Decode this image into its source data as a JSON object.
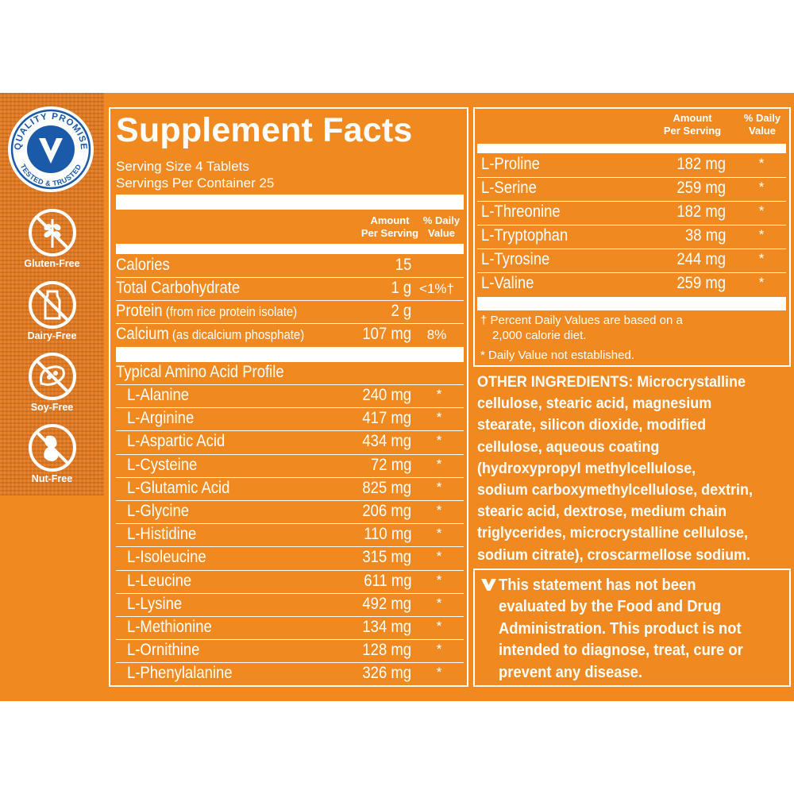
{
  "badge": {
    "top_text": "QUALITY PROMISE",
    "bottom_text": "TESTED & TRUSTED",
    "mark": "V"
  },
  "claims": [
    {
      "icon": "gluten-free-icon",
      "label": "Gluten-Free"
    },
    {
      "icon": "dairy-free-icon",
      "label": "Dairy-Free"
    },
    {
      "icon": "soy-free-icon",
      "label": "Soy-Free"
    },
    {
      "icon": "nut-free-icon",
      "label": "Nut-Free"
    }
  ],
  "facts": {
    "title": "Supplement Facts",
    "serving_size": "Serving Size 4 Tablets",
    "servings_per_container": "Servings Per Container 25",
    "amount_header": [
      "Amount",
      "Per Serving"
    ],
    "dv_header": [
      "% Daily",
      "Value"
    ],
    "nutrients": [
      {
        "name": "Calories",
        "qualifier": "",
        "amount": "15",
        "dv": ""
      },
      {
        "name": "Total Carbohydrate",
        "qualifier": "",
        "amount": "1 g",
        "dv": "<1%†"
      },
      {
        "name": "Protein",
        "qualifier": "(from rice protein isolate)",
        "amount": "2 g",
        "dv": ""
      },
      {
        "name": "Calcium",
        "qualifier": "(as dicalcium phosphate)",
        "amount": "107 mg",
        "dv": "8%"
      }
    ],
    "amino_heading": "Typical Amino Acid Profile",
    "amino_left": [
      {
        "name": "L-Alanine",
        "amount": "240 mg",
        "dv": "*"
      },
      {
        "name": "L-Arginine",
        "amount": "417 mg",
        "dv": "*"
      },
      {
        "name": "L-Aspartic Acid",
        "amount": "434 mg",
        "dv": "*"
      },
      {
        "name": "L-Cysteine",
        "amount": "72 mg",
        "dv": "*"
      },
      {
        "name": "L-Glutamic Acid",
        "amount": "825 mg",
        "dv": "*"
      },
      {
        "name": "L-Glycine",
        "amount": "206 mg",
        "dv": "*"
      },
      {
        "name": "L-Histidine",
        "amount": "110 mg",
        "dv": "*"
      },
      {
        "name": "L-Isoleucine",
        "amount": "315 mg",
        "dv": "*"
      },
      {
        "name": "L-Leucine",
        "amount": "611 mg",
        "dv": "*"
      },
      {
        "name": "L-Lysine",
        "amount": "492 mg",
        "dv": "*"
      },
      {
        "name": "L-Methionine",
        "amount": "134 mg",
        "dv": "*"
      },
      {
        "name": "L-Ornithine",
        "amount": "128 mg",
        "dv": "*"
      },
      {
        "name": "L-Phenylalanine",
        "amount": "326 mg",
        "dv": "*"
      }
    ],
    "amino_right": [
      {
        "name": "L-Proline",
        "amount": "182 mg",
        "dv": "*"
      },
      {
        "name": "L-Serine",
        "amount": "259 mg",
        "dv": "*"
      },
      {
        "name": "L-Threonine",
        "amount": "182 mg",
        "dv": "*"
      },
      {
        "name": "L-Tryptophan",
        "amount": "38 mg",
        "dv": "*"
      },
      {
        "name": "L-Tyrosine",
        "amount": "244 mg",
        "dv": "*"
      },
      {
        "name": "L-Valine",
        "amount": "259 mg",
        "dv": "*"
      }
    ],
    "footnote_dagger": [
      "† Percent Daily Values are based on a",
      "2,000 calorie diet."
    ],
    "footnote_star": "* Daily Value not established."
  },
  "other_ingredients": {
    "label": "OTHER INGREDIENTS:",
    "lines": [
      " Microcrystalline",
      "cellulose, stearic acid, magnesium",
      "stearate, silicon dioxide, modified",
      "cellulose, aqueous coating",
      "(hydroxypropyl methylcellulose,",
      "sodium carboxymethylcellulose, dextrin,",
      "stearic acid, dextrose, medium chain",
      "triglycerides, microcrystalline cellulose,",
      "sodium citrate), croscarmellose sodium."
    ]
  },
  "fda_statement": {
    "mark": "V",
    "lines": [
      "This statement has not been",
      "evaluated by the Food and Drug",
      "Administration. This product is not",
      "intended to diagnose, treat, cure or",
      "prevent any disease."
    ]
  },
  "colors": {
    "brand_orange": "#f08a20",
    "badge_blue": "#1a5aa8",
    "white": "#ffffff"
  }
}
